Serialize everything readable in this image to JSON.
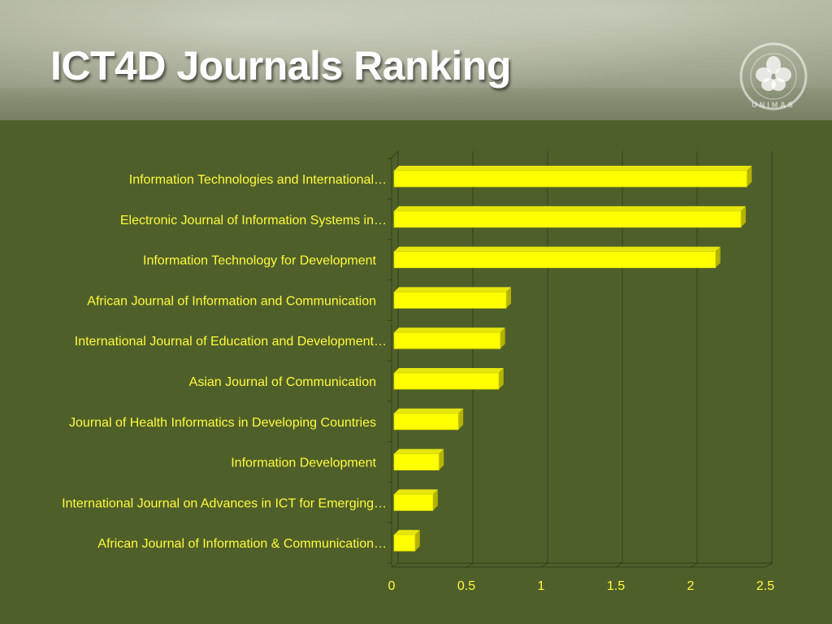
{
  "slide": {
    "title": "ICT4D Journals Ranking",
    "logo_text": "UNIMAS"
  },
  "colors": {
    "background": "#4f5f2a",
    "bar_face": "#ffff00",
    "bar_top": "#e6e60f",
    "bar_side": "#b3b300",
    "label": "#fffb3a"
  },
  "icons": {
    "logo": "cotton-flower-seal-icon"
  },
  "chart_data": {
    "type": "bar",
    "orientation": "horizontal",
    "title": "",
    "xlabel": "",
    "ylabel": "",
    "xlim": [
      0,
      2.5
    ],
    "x_ticks": [
      "0",
      "0.5",
      "1",
      "1.5",
      "2",
      "2.5"
    ],
    "grid": true,
    "legend": "none",
    "categories": [
      "Information Technologies and International…",
      "Electronic Journal of Information Systems in…",
      "Information Technology for Development",
      "African Journal of Information and Communication",
      "International Journal of Education and Development…",
      "Asian Journal of Communication",
      "Journal of Health Informatics in Developing Countries",
      "Information Development",
      "International Journal on Advances in ICT for Emerging…",
      "African Journal of Information & Communication…"
    ],
    "values": [
      2.36,
      2.32,
      2.15,
      0.75,
      0.71,
      0.7,
      0.43,
      0.3,
      0.26,
      0.14
    ]
  }
}
